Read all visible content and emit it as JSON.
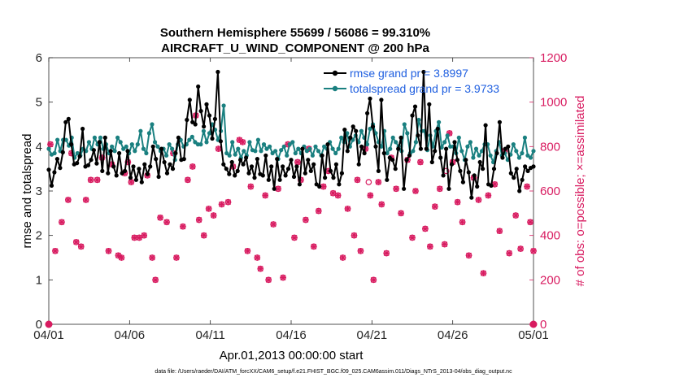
{
  "chart_data": {
    "type": "line",
    "title_line1": "Southern Hemisphere 55699 / 56086 = 99.310%",
    "title_line2": "AIRCRAFT_U_WIND_COMPONENT @ 200 hPa",
    "xlabel": "Apr.01,2013 00:00:00 start",
    "ylabel_left": "rmse and totalspread",
    "ylabel_right": "# of obs: o=possible; ×=assimilated",
    "footnote": "data file: /Users/raeder/DAI/ATM_forcXX/CAM6_setup/f.e21.FHIST_BGC.f09_025.CAM6assim.011/Diags_NTrS_2013-04/obs_diag_output.nc",
    "x_ticks": [
      "04/01",
      "04/06",
      "04/11",
      "04/16",
      "04/21",
      "04/26",
      "05/01"
    ],
    "x_range_days": [
      0,
      30
    ],
    "y_left_ticks": [
      "0",
      "1",
      "2",
      "3",
      "4",
      "5",
      "6"
    ],
    "y_left_lim": [
      0,
      6
    ],
    "y_right_ticks": [
      "0",
      "200",
      "400",
      "600",
      "800",
      "1000",
      "1200"
    ],
    "y_right_lim": [
      0,
      1200
    ],
    "colors": {
      "rmse": "#000000",
      "spread": "#1a8080",
      "obs": "#d81b60",
      "legend_text": "#1f5fe0"
    },
    "legend": [
      "rmse grand pr = 3.8997",
      "totalspread grand pr = 3.9733"
    ],
    "rmse": [
      3.48,
      3.12,
      3.42,
      3.72,
      3.52,
      3.87,
      4.55,
      4.62,
      4.05,
      3.6,
      3.63,
      3.78,
      4.4,
      3.55,
      3.58,
      3.7,
      3.92,
      3.62,
      4.1,
      3.45,
      4.2,
      3.4,
      3.9,
      3.55,
      3.35,
      3.85,
      3.4,
      3.45,
      3.9,
      3.3,
      3.55,
      3.25,
      3.5,
      3.2,
      3.6,
      3.38,
      3.55,
      4.0,
      3.72,
      3.32,
      3.95,
      3.65,
      3.4,
      3.6,
      3.5,
      3.85,
      4.2,
      3.7,
      3.72,
      4.6,
      5.05,
      4.55,
      4.5,
      5.35,
      4.8,
      4.45,
      4.95,
      4.7,
      4.18,
      4.62,
      5.68,
      4.12,
      3.6,
      3.5,
      3.38,
      3.65,
      3.35,
      3.45,
      3.7,
      3.6,
      3.75,
      3.4,
      3.55,
      3.3,
      3.72,
      3.38,
      3.35,
      3.8,
      3.25,
      3.55,
      3.05,
      3.72,
      3.25,
      3.55,
      3.35,
      3.5,
      3.7,
      3.32,
      3.55,
      3.15,
      3.95,
      3.4,
      3.7,
      3.45,
      3.6,
      3.15,
      3.1,
      3.8,
      3.3,
      4.05,
      3.45,
      3.3,
      3.6,
      3.15,
      3.4,
      4.38,
      3.9,
      4.2,
      4.45,
      4.35,
      3.6,
      4.0,
      3.85,
      4.75,
      5.08,
      4.45,
      4.0,
      3.45,
      5.05,
      3.85,
      3.25,
      3.75,
      3.7,
      3.5,
      3.95,
      4.2,
      3.05,
      3.7,
      3.8,
      4.7,
      4.9,
      4.25,
      3.95,
      5.68,
      3.95,
      4.95,
      3.65,
      3.9,
      4.4,
      3.75,
      3.35,
      3.95,
      3.05,
      3.6,
      4.1,
      3.7,
      3.45,
      3.2,
      3.7,
      3.42,
      2.85,
      3.35,
      3.1,
      3.65,
      3.5,
      4.48,
      3.15,
      3.12,
      3.5,
      3.85,
      4.55,
      3.75,
      3.95,
      4.0,
      3.4,
      3.3,
      3.5,
      3.0,
      3.25,
      3.55,
      3.45,
      3.52,
      3.55
    ],
    "spread": [
      3.95,
      3.82,
      3.85,
      4.15,
      3.9,
      4.15,
      4.15,
      4.02,
      4.2,
      3.75,
      3.85,
      3.8,
      3.95,
      3.9,
      4.1,
      3.95,
      4.2,
      4.05,
      4.2,
      3.95,
      4.05,
      3.85,
      4.0,
      3.9,
      4.2,
      4.1,
      3.95,
      4.0,
      3.85,
      4.05,
      3.9,
      4.05,
      4.35,
      3.95,
      3.85,
      4.3,
      4.5,
      4.1,
      4.0,
      3.9,
      3.95,
      3.8,
      4.05,
      3.95,
      3.7,
      4.05,
      4.15,
      4.0,
      4.05,
      4.15,
      4.22,
      4.1,
      4.05,
      4.05,
      4.35,
      4.1,
      4.3,
      4.5,
      4.38,
      4.15,
      4.35,
      4.92,
      3.85,
      3.8,
      4.1,
      3.82,
      3.95,
      3.75,
      3.9,
      3.8,
      4.1,
      3.92,
      3.9,
      4.15,
      3.9,
      4.05,
      3.95,
      4.0,
      3.85,
      3.9,
      3.72,
      3.92,
      4.0,
      3.8,
      4.05,
      4.1,
      3.85,
      3.95,
      3.85,
      4.0,
      3.9,
      3.95,
      3.8,
      4.0,
      3.9,
      3.8,
      4.0,
      3.95,
      4.1,
      3.95,
      3.85,
      3.95,
      4.2,
      4.1,
      4.3,
      4.0,
      4.15,
      4.25,
      4.1,
      4.35,
      4.2,
      4.05,
      4.4,
      4.5,
      4.3,
      4.1,
      4.0,
      4.35,
      3.85,
      3.95,
      4.2,
      4.1,
      4.0,
      3.9,
      4.5,
      4.3,
      3.85,
      3.9,
      4.1,
      4.6,
      4.35,
      4.35,
      3.92,
      4.25,
      4.0,
      4.35,
      4.55,
      3.98,
      4.1,
      4.25,
      4.0,
      4.0,
      3.85,
      4.2,
      3.9,
      3.7,
      4.0,
      4.1,
      3.75,
      3.95,
      3.8,
      3.9,
      4.05,
      4.05,
      3.8,
      3.65,
      3.9,
      4.1,
      3.8,
      3.85,
      3.7,
      3.82,
      4.05,
      3.9,
      3.75,
      3.85,
      4.2,
      3.8,
      3.75,
      3.9
    ],
    "obs_points": [
      [
        0.1,
        810
      ],
      [
        0.4,
        330
      ],
      [
        0.8,
        460
      ],
      [
        1.2,
        560
      ],
      [
        1.4,
        770
      ],
      [
        1.7,
        370
      ],
      [
        2.0,
        350
      ],
      [
        2.3,
        560
      ],
      [
        2.6,
        650
      ],
      [
        3.0,
        650
      ],
      [
        3.3,
        750
      ],
      [
        3.7,
        330
      ],
      [
        3.9,
        720
      ],
      [
        4.3,
        310
      ],
      [
        4.5,
        300
      ],
      [
        4.7,
        680
      ],
      [
        4.9,
        730
      ],
      [
        5.1,
        640
      ],
      [
        5.3,
        390
      ],
      [
        5.6,
        390
      ],
      [
        5.9,
        400
      ],
      [
        6.1,
        670
      ],
      [
        6.4,
        300
      ],
      [
        6.6,
        200
      ],
      [
        6.9,
        480
      ],
      [
        7.3,
        460
      ],
      [
        7.7,
        770
      ],
      [
        7.9,
        300
      ],
      [
        8.3,
        440
      ],
      [
        8.6,
        650
      ],
      [
        8.9,
        710
      ],
      [
        9.1,
        940
      ],
      [
        9.3,
        470
      ],
      [
        9.6,
        400
      ],
      [
        9.9,
        520
      ],
      [
        10.2,
        490
      ],
      [
        10.5,
        790
      ],
      [
        10.7,
        540
      ],
      [
        11.1,
        550
      ],
      [
        11.4,
        710
      ],
      [
        11.8,
        830
      ],
      [
        12.0,
        820
      ],
      [
        12.3,
        330
      ],
      [
        12.5,
        620
      ],
      [
        12.9,
        300
      ],
      [
        13.1,
        250
      ],
      [
        13.4,
        580
      ],
      [
        13.6,
        200
      ],
      [
        13.9,
        450
      ],
      [
        14.2,
        610
      ],
      [
        14.5,
        210
      ],
      [
        14.8,
        810
      ],
      [
        15.2,
        390
      ],
      [
        15.4,
        730
      ],
      [
        15.6,
        650
      ],
      [
        15.9,
        470
      ],
      [
        16.1,
        790
      ],
      [
        16.4,
        350
      ],
      [
        16.7,
        510
      ],
      [
        17.0,
        620
      ],
      [
        17.3,
        690
      ],
      [
        17.6,
        590
      ],
      [
        17.9,
        580
      ],
      [
        18.2,
        300
      ],
      [
        18.5,
        520
      ],
      [
        18.9,
        400
      ],
      [
        19.1,
        650
      ],
      [
        19.3,
        330
      ],
      [
        19.6,
        790
      ],
      [
        19.9,
        580
      ],
      [
        20.1,
        200
      ],
      [
        20.4,
        640
      ],
      [
        20.6,
        540
      ],
      [
        20.9,
        320
      ],
      [
        21.2,
        750
      ],
      [
        21.5,
        610
      ],
      [
        21.8,
        500
      ],
      [
        22.2,
        740
      ],
      [
        22.5,
        390
      ],
      [
        22.7,
        600
      ],
      [
        23.0,
        730
      ],
      [
        23.3,
        430
      ],
      [
        23.6,
        350
      ],
      [
        23.9,
        530
      ],
      [
        24.2,
        610
      ],
      [
        24.5,
        360
      ],
      [
        24.8,
        860
      ],
      [
        25.0,
        730
      ],
      [
        25.3,
        550
      ],
      [
        25.6,
        460
      ],
      [
        26.0,
        310
      ],
      [
        26.3,
        660
      ],
      [
        26.6,
        560
      ],
      [
        26.9,
        230
      ],
      [
        27.2,
        580
      ],
      [
        27.6,
        630
      ],
      [
        27.9,
        420
      ],
      [
        28.2,
        780
      ],
      [
        28.5,
        320
      ],
      [
        28.9,
        490
      ],
      [
        29.2,
        340
      ],
      [
        29.6,
        620
      ],
      [
        29.8,
        460
      ],
      [
        30.0,
        330
      ]
    ],
    "obs_possible_only": [
      [
        19.8,
        640
      ],
      [
        24.6,
        690
      ],
      [
        29.95,
        0
      ]
    ],
    "obs_zero_points": [
      [
        0,
        0
      ],
      [
        30,
        0
      ]
    ]
  }
}
